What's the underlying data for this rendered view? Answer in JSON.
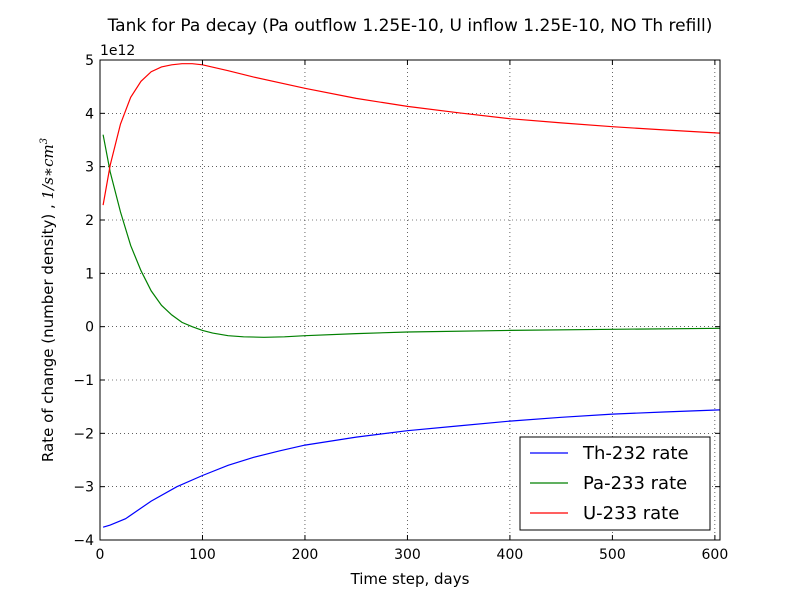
{
  "chart_data": {
    "type": "line",
    "title": "Tank for Pa decay (Pa outflow 1.25E-10, U inflow 1.25E-10, NO Th refill)",
    "xlabel": "Time step, days",
    "ylabel": "Rate of change (number density) , ",
    "ylabel_unit": "1/s∗cm",
    "ylabel_unit_exp": "3",
    "y_offset_label": "1e12",
    "xlim": [
      0,
      605
    ],
    "ylim": [
      -4,
      5
    ],
    "x_ticks": [
      0,
      100,
      200,
      300,
      400,
      500,
      600
    ],
    "y_ticks": [
      -4,
      -3,
      -2,
      -1,
      0,
      1,
      2,
      3,
      4,
      5
    ],
    "x_tick_labels": [
      "0",
      "100",
      "200",
      "300",
      "400",
      "500",
      "600"
    ],
    "y_tick_labels": [
      "−4",
      "−3",
      "−2",
      "−1",
      "0",
      "1",
      "2",
      "3",
      "4",
      "5"
    ],
    "grid": true,
    "legend_position": "lower-right",
    "series": [
      {
        "name": "Th-232 rate",
        "color": "#0000ff",
        "x": [
          3,
          10,
          25,
          50,
          75,
          100,
          125,
          150,
          175,
          200,
          250,
          300,
          350,
          400,
          450,
          500,
          550,
          605
        ],
        "y": [
          -3.76,
          -3.72,
          -3.6,
          -3.27,
          -3.0,
          -2.79,
          -2.6,
          -2.45,
          -2.33,
          -2.22,
          -2.07,
          -1.95,
          -1.86,
          -1.77,
          -1.7,
          -1.64,
          -1.6,
          -1.56
        ]
      },
      {
        "name": "Pa-233 rate",
        "color": "#008000",
        "x": [
          3,
          10,
          20,
          30,
          40,
          50,
          60,
          70,
          80,
          90,
          100,
          110,
          125,
          140,
          160,
          180,
          200,
          250,
          300,
          400,
          500,
          605
        ],
        "y": [
          3.6,
          2.9,
          2.15,
          1.52,
          1.05,
          0.67,
          0.4,
          0.22,
          0.08,
          0.0,
          -0.07,
          -0.12,
          -0.17,
          -0.19,
          -0.2,
          -0.19,
          -0.17,
          -0.13,
          -0.1,
          -0.07,
          -0.05,
          -0.03
        ]
      },
      {
        "name": "U-233 rate",
        "color": "#ff0000",
        "x": [
          3,
          10,
          20,
          30,
          40,
          50,
          60,
          70,
          80,
          90,
          100,
          125,
          150,
          200,
          250,
          300,
          350,
          400,
          450,
          500,
          550,
          605
        ],
        "y": [
          2.28,
          3.03,
          3.8,
          4.3,
          4.6,
          4.78,
          4.87,
          4.91,
          4.93,
          4.93,
          4.91,
          4.8,
          4.68,
          4.47,
          4.28,
          4.13,
          4.01,
          3.9,
          3.82,
          3.75,
          3.69,
          3.63
        ]
      }
    ]
  }
}
